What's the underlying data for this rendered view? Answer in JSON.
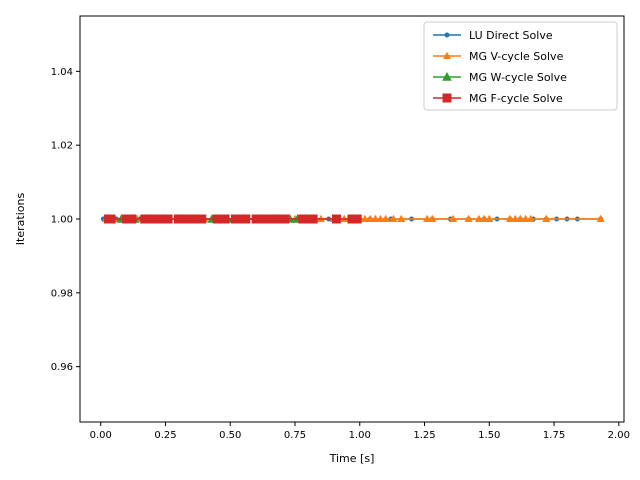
{
  "chart_data": {
    "type": "line",
    "title": "",
    "xlabel": "Time [s]",
    "ylabel": "Iterations",
    "xlim": [
      -0.08,
      2.02
    ],
    "ylim": [
      0.945,
      1.055
    ],
    "xticks": [
      0.0,
      0.25,
      0.5,
      0.75,
      1.0,
      1.25,
      1.5,
      1.75,
      2.0
    ],
    "xtick_labels": [
      "0.00",
      "0.25",
      "0.50",
      "0.75",
      "1.00",
      "1.25",
      "1.50",
      "1.75",
      "2.00"
    ],
    "yticks": [
      0.96,
      0.98,
      1.0,
      1.02,
      1.04
    ],
    "ytick_labels": [
      "0.96",
      "0.98",
      "1.00",
      "1.02",
      "1.04"
    ],
    "grid": false,
    "legend_position": "top-right",
    "series": [
      {
        "name": "LU Direct Solve",
        "color": "#1f77b4",
        "marker": "dot",
        "x": [
          0.01,
          0.03,
          0.06,
          0.1,
          0.15,
          0.22,
          0.3,
          0.38,
          0.46,
          0.55,
          0.63,
          0.72,
          0.8,
          0.88,
          0.96,
          1.04,
          1.12,
          1.2,
          1.28,
          1.35,
          1.42,
          1.48,
          1.53,
          1.58,
          1.62,
          1.67,
          1.72,
          1.76,
          1.8,
          1.84,
          1.93
        ],
        "y": [
          1,
          1,
          1,
          1,
          1,
          1,
          1,
          1,
          1,
          1,
          1,
          1,
          1,
          1,
          1,
          1,
          1,
          1,
          1,
          1,
          1,
          1,
          1,
          1,
          1,
          1,
          1,
          1,
          1,
          1,
          1
        ]
      },
      {
        "name": "MG V-cycle Solve",
        "color": "#ff7f0e",
        "marker": "triangle",
        "x": [
          0.02,
          0.05,
          0.09,
          0.14,
          0.2,
          0.26,
          0.33,
          0.4,
          0.47,
          0.54,
          0.61,
          0.68,
          0.75,
          0.8,
          0.85,
          0.9,
          0.94,
          0.98,
          1.02,
          1.04,
          1.06,
          1.08,
          1.1,
          1.13,
          1.16,
          1.26,
          1.28,
          1.36,
          1.42,
          1.46,
          1.48,
          1.5,
          1.58,
          1.6,
          1.62,
          1.64,
          1.66,
          1.72,
          1.93
        ],
        "y": [
          1,
          1,
          1,
          1,
          1,
          1,
          1,
          1,
          1,
          1,
          1,
          1,
          1,
          1,
          1,
          1,
          1,
          1,
          1,
          1,
          1,
          1,
          1,
          1,
          1,
          1,
          1,
          1,
          1,
          1,
          1,
          1,
          1,
          1,
          1,
          1,
          1,
          1,
          1
        ]
      },
      {
        "name": "MG W-cycle Solve",
        "color": "#2ca02c",
        "marker": "triangle-large",
        "x": [
          0.03,
          0.08,
          0.13,
          0.19,
          0.25,
          0.31,
          0.37,
          0.43,
          0.49,
          0.55,
          0.61,
          0.67,
          0.73,
          0.76
        ],
        "y": [
          1,
          1,
          1,
          1,
          1,
          1,
          1,
          1,
          1,
          1,
          1,
          1,
          1,
          1
        ]
      },
      {
        "name": "MG F-cycle Solve",
        "color": "#d62728",
        "marker": "square",
        "x": [
          0.03,
          0.035,
          0.04,
          0.1,
          0.11,
          0.12,
          0.17,
          0.19,
          0.2,
          0.21,
          0.23,
          0.24,
          0.26,
          0.3,
          0.31,
          0.32,
          0.33,
          0.35,
          0.38,
          0.39,
          0.45,
          0.46,
          0.47,
          0.48,
          0.52,
          0.53,
          0.55,
          0.56,
          0.6,
          0.61,
          0.63,
          0.64,
          0.66,
          0.67,
          0.69,
          0.7,
          0.71,
          0.78,
          0.79,
          0.8,
          0.81,
          0.82,
          0.91,
          0.97,
          0.98,
          0.99
        ],
        "y": [
          1,
          1,
          1,
          1,
          1,
          1,
          1,
          1,
          1,
          1,
          1,
          1,
          1,
          1,
          1,
          1,
          1,
          1,
          1,
          1,
          1,
          1,
          1,
          1,
          1,
          1,
          1,
          1,
          1,
          1,
          1,
          1,
          1,
          1,
          1,
          1,
          1,
          1,
          1,
          1,
          1,
          1,
          1,
          1,
          1,
          1
        ]
      }
    ]
  }
}
